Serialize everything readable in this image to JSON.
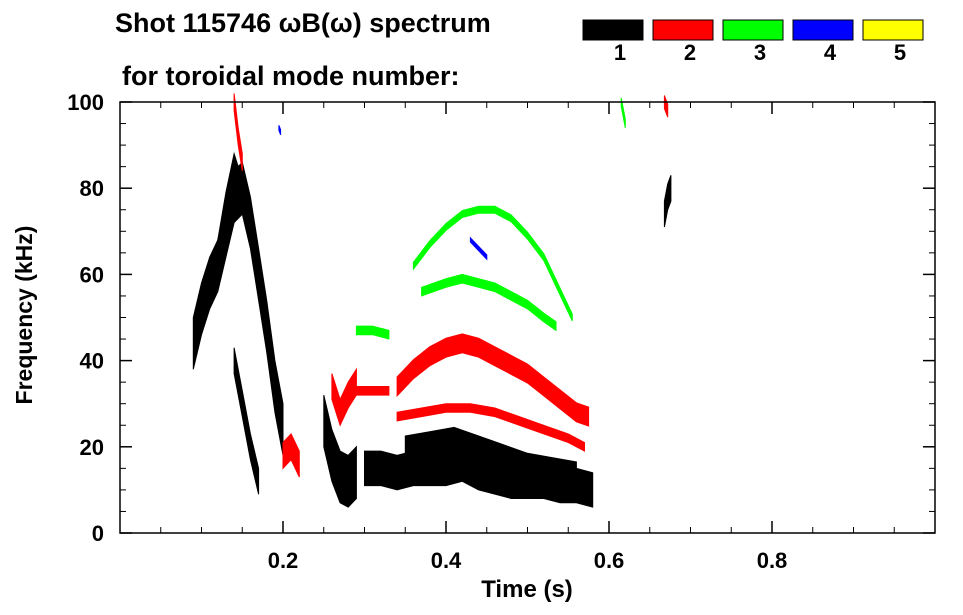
{
  "chart_data": {
    "type": "heatmap",
    "title_line1": "Shot 115746 ωB(ω) spectrum",
    "title_line2": "for toroidal mode number:",
    "xlabel": "Time (s)",
    "ylabel": "Frequency (kHz)",
    "xlim": [
      0.0,
      1.0
    ],
    "ylim": [
      0,
      100
    ],
    "xticks": [
      0.2,
      0.4,
      0.6,
      0.8
    ],
    "xtick_labels": [
      "0.2",
      "0.4",
      "0.6",
      "0.8"
    ],
    "yticks": [
      0,
      20,
      40,
      60,
      80,
      100
    ],
    "ytick_labels": [
      "0",
      "20",
      "40",
      "60",
      "80",
      "100"
    ],
    "legend": {
      "placement": "top-right",
      "entries": [
        {
          "label": "1",
          "color": "#000000"
        },
        {
          "label": "2",
          "color": "#ff0000"
        },
        {
          "label": "3",
          "color": "#00ff00"
        },
        {
          "label": "4",
          "color": "#0000ff"
        },
        {
          "label": "5",
          "color": "#ffff00"
        }
      ]
    },
    "regions": [
      {
        "mode": 1,
        "type": "band",
        "points": [
          [
            0.09,
            44
          ],
          [
            0.1,
            52
          ],
          [
            0.11,
            58
          ],
          [
            0.12,
            62
          ],
          [
            0.13,
            70
          ],
          [
            0.14,
            78
          ],
          [
            0.15,
            80
          ],
          [
            0.16,
            72
          ],
          [
            0.17,
            60
          ],
          [
            0.18,
            48
          ],
          [
            0.19,
            34
          ],
          [
            0.2,
            24
          ]
        ],
        "halfwidth": 6
      },
      {
        "mode": 1,
        "type": "band",
        "points": [
          [
            0.12,
            64
          ],
          [
            0.13,
            75
          ],
          [
            0.14,
            84
          ],
          [
            0.15,
            78
          ]
        ],
        "halfwidth": 4
      },
      {
        "mode": 1,
        "type": "band",
        "points": [
          [
            0.14,
            40
          ],
          [
            0.15,
            30
          ],
          [
            0.16,
            20
          ],
          [
            0.17,
            12
          ]
        ],
        "halfwidth": 3
      },
      {
        "mode": 1,
        "type": "band",
        "points": [
          [
            0.25,
            26
          ],
          [
            0.26,
            18
          ],
          [
            0.27,
            13
          ],
          [
            0.28,
            12
          ],
          [
            0.29,
            14
          ]
        ],
        "halfwidth": 6
      },
      {
        "mode": 1,
        "type": "band",
        "points": [
          [
            0.3,
            15
          ],
          [
            0.32,
            15
          ],
          [
            0.34,
            14
          ],
          [
            0.36,
            15
          ],
          [
            0.38,
            15
          ],
          [
            0.4,
            15
          ],
          [
            0.42,
            16
          ],
          [
            0.44,
            14
          ],
          [
            0.46,
            13
          ],
          [
            0.48,
            12
          ],
          [
            0.5,
            12
          ],
          [
            0.52,
            12
          ],
          [
            0.54,
            11
          ],
          [
            0.56,
            11
          ],
          [
            0.58,
            10
          ]
        ],
        "halfwidth": 4
      },
      {
        "mode": 1,
        "type": "band",
        "points": [
          [
            0.35,
            20
          ],
          [
            0.38,
            21
          ],
          [
            0.41,
            22
          ],
          [
            0.44,
            20
          ],
          [
            0.47,
            18
          ],
          [
            0.5,
            16
          ],
          [
            0.53,
            15
          ],
          [
            0.56,
            14
          ]
        ],
        "halfwidth": 2.5
      },
      {
        "mode": 1,
        "type": "band",
        "points": [
          [
            0.668,
            74
          ],
          [
            0.672,
            78
          ],
          [
            0.676,
            80
          ]
        ],
        "halfwidth": 3
      },
      {
        "mode": 2,
        "type": "band",
        "points": [
          [
            0.14,
            100
          ],
          [
            0.145,
            92
          ],
          [
            0.15,
            86
          ]
        ],
        "halfwidth": 2
      },
      {
        "mode": 2,
        "type": "band",
        "points": [
          [
            0.2,
            18
          ],
          [
            0.21,
            20
          ],
          [
            0.22,
            16
          ]
        ],
        "halfwidth": 3
      },
      {
        "mode": 2,
        "type": "band",
        "points": [
          [
            0.26,
            34
          ],
          [
            0.27,
            28
          ],
          [
            0.28,
            32
          ],
          [
            0.29,
            35
          ]
        ],
        "halfwidth": 3
      },
      {
        "mode": 2,
        "type": "band",
        "points": [
          [
            0.29,
            33
          ],
          [
            0.3,
            33
          ],
          [
            0.31,
            33
          ],
          [
            0.32,
            33
          ],
          [
            0.33,
            33
          ]
        ],
        "halfwidth": 1
      },
      {
        "mode": 2,
        "type": "band",
        "points": [
          [
            0.34,
            34
          ],
          [
            0.36,
            38
          ],
          [
            0.38,
            41
          ],
          [
            0.4,
            43
          ],
          [
            0.42,
            44
          ],
          [
            0.44,
            43
          ],
          [
            0.46,
            41
          ],
          [
            0.48,
            39
          ],
          [
            0.5,
            37
          ],
          [
            0.52,
            34
          ],
          [
            0.54,
            31
          ],
          [
            0.56,
            28
          ],
          [
            0.575,
            27
          ]
        ],
        "halfwidth": 2.2
      },
      {
        "mode": 2,
        "type": "band",
        "points": [
          [
            0.34,
            27
          ],
          [
            0.37,
            28
          ],
          [
            0.4,
            29
          ],
          [
            0.43,
            29
          ],
          [
            0.46,
            28
          ],
          [
            0.49,
            26
          ],
          [
            0.52,
            24
          ],
          [
            0.55,
            22
          ],
          [
            0.57,
            20
          ]
        ],
        "halfwidth": 1
      },
      {
        "mode": 2,
        "type": "band",
        "points": [
          [
            0.668,
            100
          ],
          [
            0.672,
            98
          ]
        ],
        "halfwidth": 1.5
      },
      {
        "mode": 3,
        "type": "band",
        "points": [
          [
            0.36,
            62
          ],
          [
            0.38,
            67
          ],
          [
            0.4,
            71
          ],
          [
            0.42,
            74
          ],
          [
            0.44,
            75
          ],
          [
            0.46,
            75
          ],
          [
            0.48,
            73
          ],
          [
            0.5,
            69
          ],
          [
            0.52,
            64
          ],
          [
            0.54,
            56
          ],
          [
            0.555,
            50
          ]
        ],
        "halfwidth": 0.8
      },
      {
        "mode": 3,
        "type": "band",
        "points": [
          [
            0.37,
            56
          ],
          [
            0.4,
            58
          ],
          [
            0.42,
            59
          ],
          [
            0.44,
            58
          ],
          [
            0.46,
            57
          ],
          [
            0.48,
            55
          ],
          [
            0.5,
            53
          ],
          [
            0.52,
            50
          ],
          [
            0.535,
            48
          ]
        ],
        "halfwidth": 1
      },
      {
        "mode": 3,
        "type": "band",
        "points": [
          [
            0.29,
            47
          ],
          [
            0.31,
            47
          ],
          [
            0.33,
            46
          ]
        ],
        "halfwidth": 1
      },
      {
        "mode": 3,
        "type": "band",
        "points": [
          [
            0.615,
            100
          ],
          [
            0.62,
            95
          ]
        ],
        "halfwidth": 1
      },
      {
        "mode": 4,
        "type": "band",
        "points": [
          [
            0.43,
            68
          ],
          [
            0.44,
            66
          ],
          [
            0.45,
            64
          ]
        ],
        "halfwidth": 0.5
      },
      {
        "mode": 4,
        "type": "band",
        "points": [
          [
            0.195,
            94
          ],
          [
            0.197,
            93
          ]
        ],
        "halfwidth": 0.6
      }
    ],
    "grid": false
  }
}
